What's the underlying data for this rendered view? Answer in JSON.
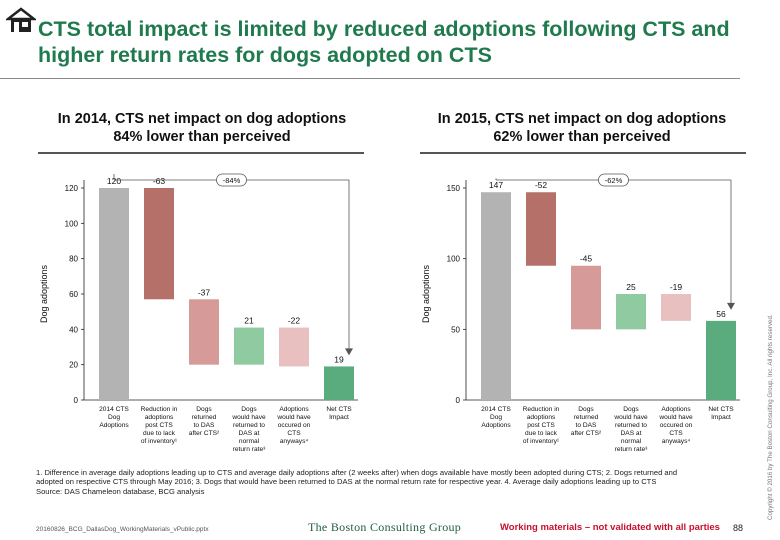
{
  "title": "CTS total impact is limited by reduced adoptions following CTS and higher return rates for dogs adopted on CTS",
  "chart_data": [
    {
      "type": "bar",
      "heading": "In 2014, CTS net impact on dog adoptions 84% lower than perceived",
      "ylabel": "Dog adoptions",
      "ylim": [
        0,
        120
      ],
      "yticks": [
        0,
        20,
        40,
        60,
        80,
        100,
        120
      ],
      "categories": [
        [
          "2014 CTS",
          "Dog",
          "Adoptions"
        ],
        [
          "Reduction in",
          "adoptions",
          "post CTS",
          "due to lack",
          "of inventory¹"
        ],
        [
          "Dogs",
          "returned",
          "to DAS",
          "after CTS²"
        ],
        [
          "Dogs",
          "would have",
          "returned to",
          "DAS at",
          "normal",
          "return rate³"
        ],
        [
          "Adoptions",
          "would have",
          "occured on",
          "CTS",
          "anyways⁴"
        ],
        [
          "Net CTS",
          "Impact"
        ]
      ],
      "values": [
        120,
        -63,
        -37,
        21,
        -22,
        19
      ],
      "value_labels": [
        "120",
        "-63",
        "-37",
        "21",
        "-22",
        "19"
      ],
      "bar_colors": [
        "#b3b3b3",
        "#b5706a",
        "#d69a98",
        "#8fcaa1",
        "#e8c0c0",
        "#5aab7e"
      ],
      "reduction_label": "-84%"
    },
    {
      "type": "bar",
      "heading": "In 2015, CTS net impact on dog adoptions 62% lower than perceived",
      "ylabel": "Dog adoptions",
      "ylim": [
        0,
        150
      ],
      "yticks": [
        0,
        50,
        100,
        150
      ],
      "categories": [
        [
          "2014 CTS",
          "Dog",
          "Adoptions"
        ],
        [
          "Reduction in",
          "adoptions",
          "post CTS",
          "due to lack",
          "of inventory¹"
        ],
        [
          "Dogs",
          "returned",
          "to DAS",
          "after CTS²"
        ],
        [
          "Dogs",
          "would have",
          "returned to",
          "DAS at",
          "normal",
          "return rate³"
        ],
        [
          "Adoptions",
          "would have",
          "occured on",
          "CTS",
          "anyways⁴"
        ],
        [
          "Net CTS",
          "Impact"
        ]
      ],
      "values": [
        147,
        -52,
        -45,
        25,
        -19,
        56
      ],
      "value_labels": [
        "147",
        "-52",
        "-45",
        "25",
        "-19",
        "56"
      ],
      "bar_colors": [
        "#b3b3b3",
        "#b5706a",
        "#d69a98",
        "#8fcaa1",
        "#e8c0c0",
        "#5aab7e"
      ],
      "reduction_label": "-62%"
    }
  ],
  "footnotes": [
    "1. Difference in average daily adoptions leading up to CTS and average daily adoptions after (2 weeks after) when dogs available have mostly been adopted during CTS; 2. Dogs returned and",
    "adopted on respective CTS through May 2016; 3. Dogs that would have been returned to DAS at the normal return rate for respective year. 4. Average daily adoptions leading up to CTS",
    "Source: DAS Chameleon database, BCG analysis"
  ],
  "filename": "20160826_BCG_DallasDog_WorkingMaterials_vPublic.pptx",
  "brand": "The Boston Consulting Group",
  "working_note": "Working materials – not validated with all parties",
  "page_number": "88",
  "copyright": "Copyright © 2016 by The Boston Consulting Group, Inc. All rights reserved."
}
